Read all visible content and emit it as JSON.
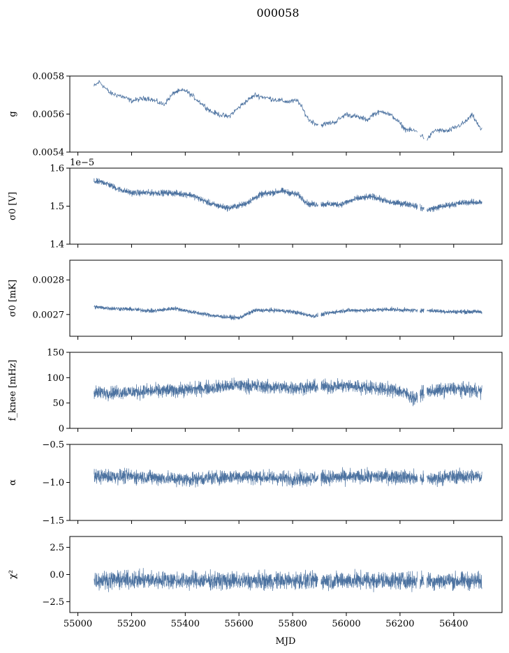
{
  "figure": {
    "title": "000058",
    "xlabel": "MJD"
  },
  "chart_data": {
    "type": "line",
    "shared_x": {
      "label": "MJD",
      "xlim": [
        54970,
        56580
      ],
      "ticks": [
        55000,
        55200,
        55400,
        55600,
        55800,
        56000,
        56200,
        56400
      ]
    },
    "series_color": "#4c72a0",
    "panels": [
      {
        "ylabel": "g",
        "ylim": [
          0.0054,
          0.0058
        ],
        "ticks": [
          0.0054,
          0.0056,
          0.0058
        ],
        "tick_labels": [
          "0.0054",
          "0.0056",
          "0.0058"
        ],
        "offset_label": "",
        "noise": 2e-05,
        "envelope": [
          [
            55060,
            0.005745
          ],
          [
            55080,
            0.00577
          ],
          [
            55120,
            0.00571
          ],
          [
            55160,
            0.005695
          ],
          [
            55200,
            0.00567
          ],
          [
            55260,
            0.005685
          ],
          [
            55320,
            0.00565
          ],
          [
            55360,
            0.005715
          ],
          [
            55400,
            0.005725
          ],
          [
            55440,
            0.00568
          ],
          [
            55500,
            0.00561
          ],
          [
            55560,
            0.005585
          ],
          [
            55620,
            0.00566
          ],
          [
            55660,
            0.0057
          ],
          [
            55720,
            0.00568
          ],
          [
            55780,
            0.005665
          ],
          [
            55820,
            0.00567
          ],
          [
            55860,
            0.00557
          ],
          [
            55900,
            0.00554
          ],
          [
            55960,
            0.00556
          ],
          [
            56000,
            0.0056
          ],
          [
            56040,
            0.005585
          ],
          [
            56080,
            0.00557
          ],
          [
            56100,
            0.0056
          ],
          [
            56140,
            0.005615
          ],
          [
            56180,
            0.00558
          ],
          [
            56220,
            0.00552
          ],
          [
            56260,
            0.00551
          ],
          [
            56300,
            0.005465
          ],
          [
            56330,
            0.005515
          ],
          [
            56380,
            0.00551
          ],
          [
            56440,
            0.005555
          ],
          [
            56470,
            0.005595
          ],
          [
            56500,
            0.00552
          ]
        ]
      },
      {
        "ylabel": "σ0 [V]",
        "ylim": [
          1.4e-05,
          1.6e-05
        ],
        "ticks": [
          1.4e-05,
          1.5e-05,
          1.6e-05
        ],
        "tick_labels": [
          "1.4",
          "1.5",
          "1.6"
        ],
        "offset_label": "1e−5",
        "noise": 1.2e-07,
        "envelope": [
          [
            55060,
            1.565e-05
          ],
          [
            55100,
            1.562e-05
          ],
          [
            55150,
            1.545e-05
          ],
          [
            55200,
            1.535e-05
          ],
          [
            55260,
            1.535e-05
          ],
          [
            55340,
            1.535e-05
          ],
          [
            55420,
            1.53e-05
          ],
          [
            55500,
            1.505e-05
          ],
          [
            55560,
            1.495e-05
          ],
          [
            55620,
            1.505e-05
          ],
          [
            55680,
            1.53e-05
          ],
          [
            55760,
            1.54e-05
          ],
          [
            55820,
            1.53e-05
          ],
          [
            55860,
            1.505e-05
          ],
          [
            55900,
            1.505e-05
          ],
          [
            55980,
            1.505e-05
          ],
          [
            56040,
            1.52e-05
          ],
          [
            56100,
            1.525e-05
          ],
          [
            56160,
            1.51e-05
          ],
          [
            56240,
            1.505e-05
          ],
          [
            56300,
            1.49e-05
          ],
          [
            56360,
            1.5e-05
          ],
          [
            56440,
            1.51e-05
          ],
          [
            56500,
            1.51e-05
          ]
        ]
      },
      {
        "ylabel": "σ0 [mK]",
        "ylim": [
          0.002637,
          0.002857
        ],
        "ticks": [
          0.0027,
          0.0028
        ],
        "tick_labels": [
          "0.0027",
          "0.0028"
        ],
        "offset_label": "",
        "noise": 9e-06,
        "envelope": [
          [
            55060,
            0.002722
          ],
          [
            55120,
            0.002718
          ],
          [
            55200,
            0.002715
          ],
          [
            55280,
            0.00271
          ],
          [
            55360,
            0.002718
          ],
          [
            55440,
            0.002705
          ],
          [
            55520,
            0.002695
          ],
          [
            55600,
            0.00269
          ],
          [
            55660,
            0.002712
          ],
          [
            55740,
            0.002712
          ],
          [
            55800,
            0.002708
          ],
          [
            55880,
            0.002695
          ],
          [
            55940,
            0.002705
          ],
          [
            56000,
            0.002712
          ],
          [
            56080,
            0.002712
          ],
          [
            56160,
            0.002715
          ],
          [
            56240,
            0.002712
          ],
          [
            56300,
            0.002712
          ],
          [
            56380,
            0.002708
          ],
          [
            56500,
            0.002708
          ]
        ]
      },
      {
        "ylabel": "f_knee [mHz]",
        "ylim": [
          0,
          150
        ],
        "ticks": [
          0,
          50,
          100,
          150
        ],
        "tick_labels": [
          "0",
          "50",
          "100",
          "150"
        ],
        "offset_label": "",
        "noise": 20,
        "envelope": [
          [
            55060,
            70
          ],
          [
            55200,
            72
          ],
          [
            55400,
            76
          ],
          [
            55600,
            85
          ],
          [
            55700,
            82
          ],
          [
            55800,
            80
          ],
          [
            55900,
            82
          ],
          [
            56000,
            84
          ],
          [
            56100,
            80
          ],
          [
            56200,
            74
          ],
          [
            56260,
            58
          ],
          [
            56280,
            70
          ],
          [
            56300,
            72
          ],
          [
            56400,
            78
          ],
          [
            56500,
            74
          ]
        ]
      },
      {
        "ylabel": "α",
        "ylim": [
          -1.5,
          -0.5
        ],
        "ticks": [
          -1.5,
          -1.0,
          -0.5
        ],
        "tick_labels": [
          "−1.5",
          "−1.0",
          "−0.5"
        ],
        "offset_label": "",
        "noise": 0.14,
        "envelope": [
          [
            55060,
            -0.92
          ],
          [
            55200,
            -0.92
          ],
          [
            55400,
            -0.96
          ],
          [
            55600,
            -0.92
          ],
          [
            55800,
            -0.95
          ],
          [
            56000,
            -0.93
          ],
          [
            56200,
            -0.92
          ],
          [
            56300,
            -0.96
          ],
          [
            56400,
            -0.92
          ],
          [
            56500,
            -0.92
          ]
        ]
      },
      {
        "ylabel": "χ²",
        "ylim": [
          -3.5,
          3.5
        ],
        "ticks": [
          -2.5,
          0.0,
          2.5
        ],
        "tick_labels": [
          "−2.5",
          "0.0",
          "2.5"
        ],
        "offset_label": "",
        "noise": 1.2,
        "envelope": [
          [
            55060,
            -0.5
          ],
          [
            55300,
            -0.5
          ],
          [
            55600,
            -0.6
          ],
          [
            55900,
            -0.55
          ],
          [
            56200,
            -0.55
          ],
          [
            56500,
            -0.6
          ]
        ]
      }
    ],
    "gaps": [
      [
        55895,
        55905
      ],
      [
        56265,
        56275
      ],
      [
        56290,
        56300
      ]
    ]
  }
}
